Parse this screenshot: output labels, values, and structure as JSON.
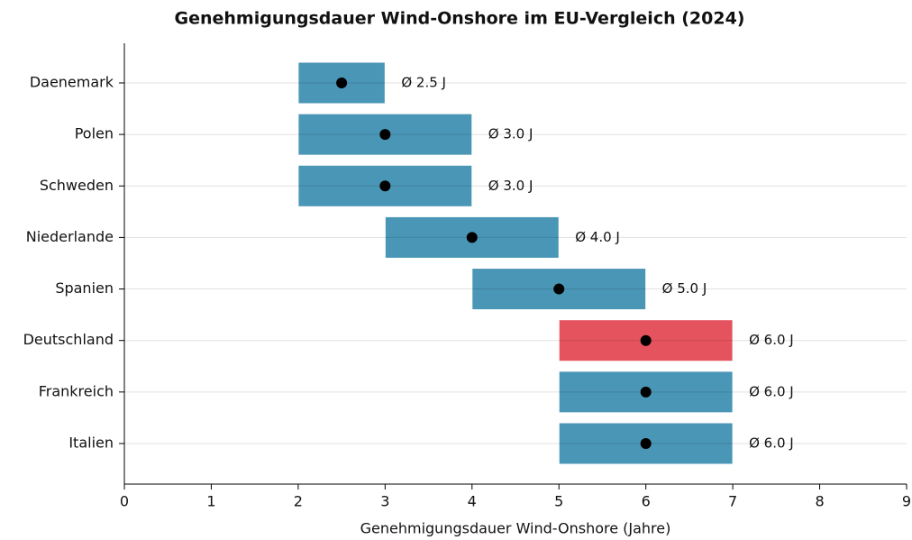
{
  "chart_data": {
    "type": "range",
    "title": "Genehmigungsdauer Wind-Onshore im EU-Vergleich (2024)",
    "xlabel": "Genehmigungsdauer Wind-Onshore (Jahre)",
    "categories": [
      "Daenemark",
      "Polen",
      "Schweden",
      "Niederlande",
      "Spanien",
      "Deutschland",
      "Frankreich",
      "Italien"
    ],
    "low": [
      2,
      2,
      2,
      3,
      4,
      5,
      5,
      5
    ],
    "high": [
      3,
      4,
      4,
      5,
      6,
      7,
      7,
      7
    ],
    "values": [
      2.5,
      3.0,
      3.0,
      4.0,
      5.0,
      6.0,
      6.0,
      6.0
    ],
    "value_labels": [
      "Ø 2.5 J",
      "Ø 3.0 J",
      "Ø 3.0 J",
      "Ø 4.0 J",
      "Ø 5.0 J",
      "Ø 6.0 J",
      "Ø 6.0 J",
      "Ø 6.0 J"
    ],
    "colors": [
      "#4a96b6",
      "#4a96b6",
      "#4a96b6",
      "#4a96b6",
      "#4a96b6",
      "#e5535e",
      "#4a96b6",
      "#4a96b6"
    ],
    "marker_color": "#000000",
    "xlim": [
      0,
      9
    ],
    "xticks": [
      0,
      1,
      2,
      3,
      4,
      5,
      6,
      7,
      8,
      9
    ],
    "grid": true
  }
}
